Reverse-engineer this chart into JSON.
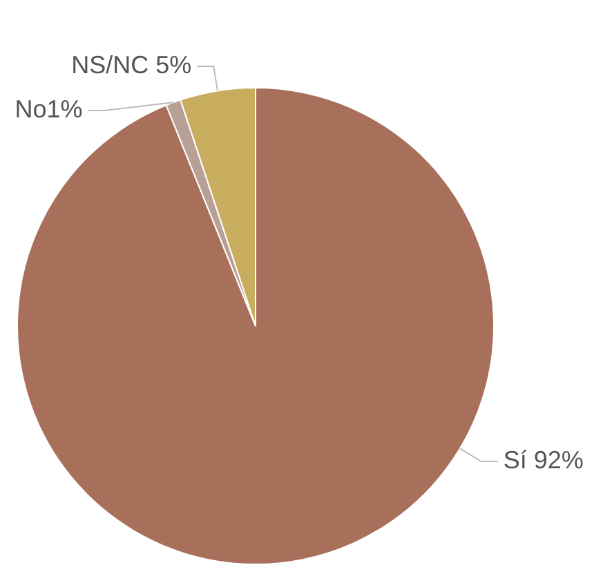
{
  "chart_data": {
    "type": "pie",
    "categories": [
      "Sí 92%",
      "No1%",
      "NS/NC 5%"
    ],
    "values": [
      92,
      1,
      5
    ],
    "colors": [
      "#a8705a",
      "#b9a096",
      "#c8ad5e"
    ]
  }
}
